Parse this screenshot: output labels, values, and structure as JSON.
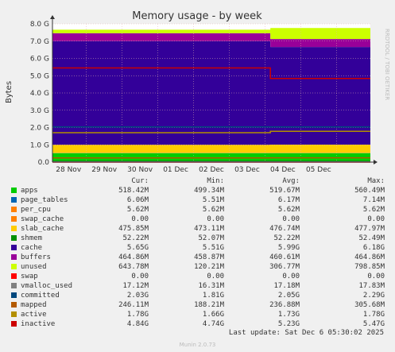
{
  "chart_data": {
    "type": "area",
    "title": "Memory usage - by week",
    "ylabel": "Bytes",
    "ylim": [
      0,
      8
    ],
    "y_unit": "G",
    "yticks": [
      "0.0",
      "1.0 G",
      "2.0 G",
      "3.0 G",
      "4.0 G",
      "5.0 G",
      "6.0 G",
      "7.0 G",
      "8.0 G"
    ],
    "x_ticks": [
      "28 Nov",
      "29 Nov",
      "30 Nov",
      "01 Dec",
      "02 Dec",
      "03 Dec",
      "04 Dec",
      "05 Dec"
    ],
    "stacked_series": [
      {
        "name": "apps",
        "color": "#00cc00",
        "before": 0.52,
        "after": 0.52
      },
      {
        "name": "page_tables",
        "color": "#0066b3",
        "before": 0.006,
        "after": 0.006
      },
      {
        "name": "per_cpu",
        "color": "#ff8000",
        "before": 0.006,
        "after": 0.006
      },
      {
        "name": "swap_cache",
        "color": "#ffcc00",
        "before": 0.0,
        "after": 0.0
      },
      {
        "name": "slab_cache",
        "color": "#ffcc00",
        "before": 0.47,
        "after": 0.48
      },
      {
        "name": "cache",
        "color": "#330099",
        "before": 6.0,
        "after": 5.65
      },
      {
        "name": "buffers",
        "color": "#990099",
        "before": 0.46,
        "after": 0.46
      },
      {
        "name": "unused",
        "color": "#ccff00",
        "before": 0.2,
        "after": 0.64
      }
    ],
    "line_series": [
      {
        "name": "shmem",
        "color": "#008f00",
        "before": 0.05,
        "after": 0.05
      },
      {
        "name": "swap",
        "color": "#ff0000",
        "before": 0.0,
        "after": 0.0
      },
      {
        "name": "vmalloc_used",
        "color": "#808080",
        "before": 0.017,
        "after": 0.017
      },
      {
        "name": "committed",
        "color": "#00487d",
        "before": 2.03,
        "after": 2.03
      },
      {
        "name": "mapped",
        "color": "#b35a00",
        "before": 0.24,
        "after": 0.25
      },
      {
        "name": "active",
        "color": "#b38f00",
        "before": 1.7,
        "after": 1.78
      },
      {
        "name": "inactive",
        "color": "#cc0000",
        "before": 5.45,
        "after": 4.84
      }
    ],
    "step_day_fraction": 6.1
  },
  "side_text": "RRDTOOL / TOBI OETIKER",
  "legend": {
    "headers": {
      "cur": "Cur:",
      "min": "Min:",
      "avg": "Avg:",
      "max": "Max:"
    },
    "rows": [
      {
        "name": "apps",
        "color": "#00cc00",
        "cur": "518.42M",
        "min": "499.34M",
        "avg": "519.67M",
        "max": "560.49M"
      },
      {
        "name": "page_tables",
        "color": "#0066b3",
        "cur": "6.06M",
        "min": "5.51M",
        "avg": "6.17M",
        "max": "7.14M"
      },
      {
        "name": "per_cpu",
        "color": "#ff8000",
        "cur": "5.62M",
        "min": "5.62M",
        "avg": "5.62M",
        "max": "5.62M"
      },
      {
        "name": "swap_cache",
        "color": "#ff8000",
        "cur": "0.00",
        "min": "0.00",
        "avg": "0.00",
        "max": "0.00"
      },
      {
        "name": "slab_cache",
        "color": "#ffcc00",
        "cur": "475.85M",
        "min": "473.11M",
        "avg": "476.74M",
        "max": "477.97M"
      },
      {
        "name": "shmem",
        "color": "#008f00",
        "cur": "52.22M",
        "min": "52.07M",
        "avg": "52.22M",
        "max": "52.49M"
      },
      {
        "name": "cache",
        "color": "#330099",
        "cur": "5.65G",
        "min": "5.51G",
        "avg": "5.99G",
        "max": "6.18G"
      },
      {
        "name": "buffers",
        "color": "#990099",
        "cur": "464.86M",
        "min": "458.87M",
        "avg": "460.61M",
        "max": "464.86M"
      },
      {
        "name": "unused",
        "color": "#ccff00",
        "cur": "643.78M",
        "min": "120.21M",
        "avg": "306.77M",
        "max": "798.85M"
      },
      {
        "name": "swap",
        "color": "#ff0000",
        "cur": "0.00",
        "min": "0.00",
        "avg": "0.00",
        "max": "0.00"
      },
      {
        "name": "vmalloc_used",
        "color": "#808080",
        "cur": "17.12M",
        "min": "16.31M",
        "avg": "17.18M",
        "max": "17.83M"
      },
      {
        "name": "committed",
        "color": "#00487d",
        "cur": "2.03G",
        "min": "1.81G",
        "avg": "2.05G",
        "max": "2.29G"
      },
      {
        "name": "mapped",
        "color": "#b35a00",
        "cur": "246.11M",
        "min": "188.21M",
        "avg": "236.88M",
        "max": "305.68M"
      },
      {
        "name": "active",
        "color": "#b38f00",
        "cur": "1.78G",
        "min": "1.66G",
        "avg": "1.73G",
        "max": "1.78G"
      },
      {
        "name": "inactive",
        "color": "#cc0000",
        "cur": "4.84G",
        "min": "4.74G",
        "avg": "5.23G",
        "max": "5.47G"
      }
    ]
  },
  "last_update": "Last update: Sat Dec  6 05:30:02 2025",
  "footer": "Munin 2.0.73"
}
